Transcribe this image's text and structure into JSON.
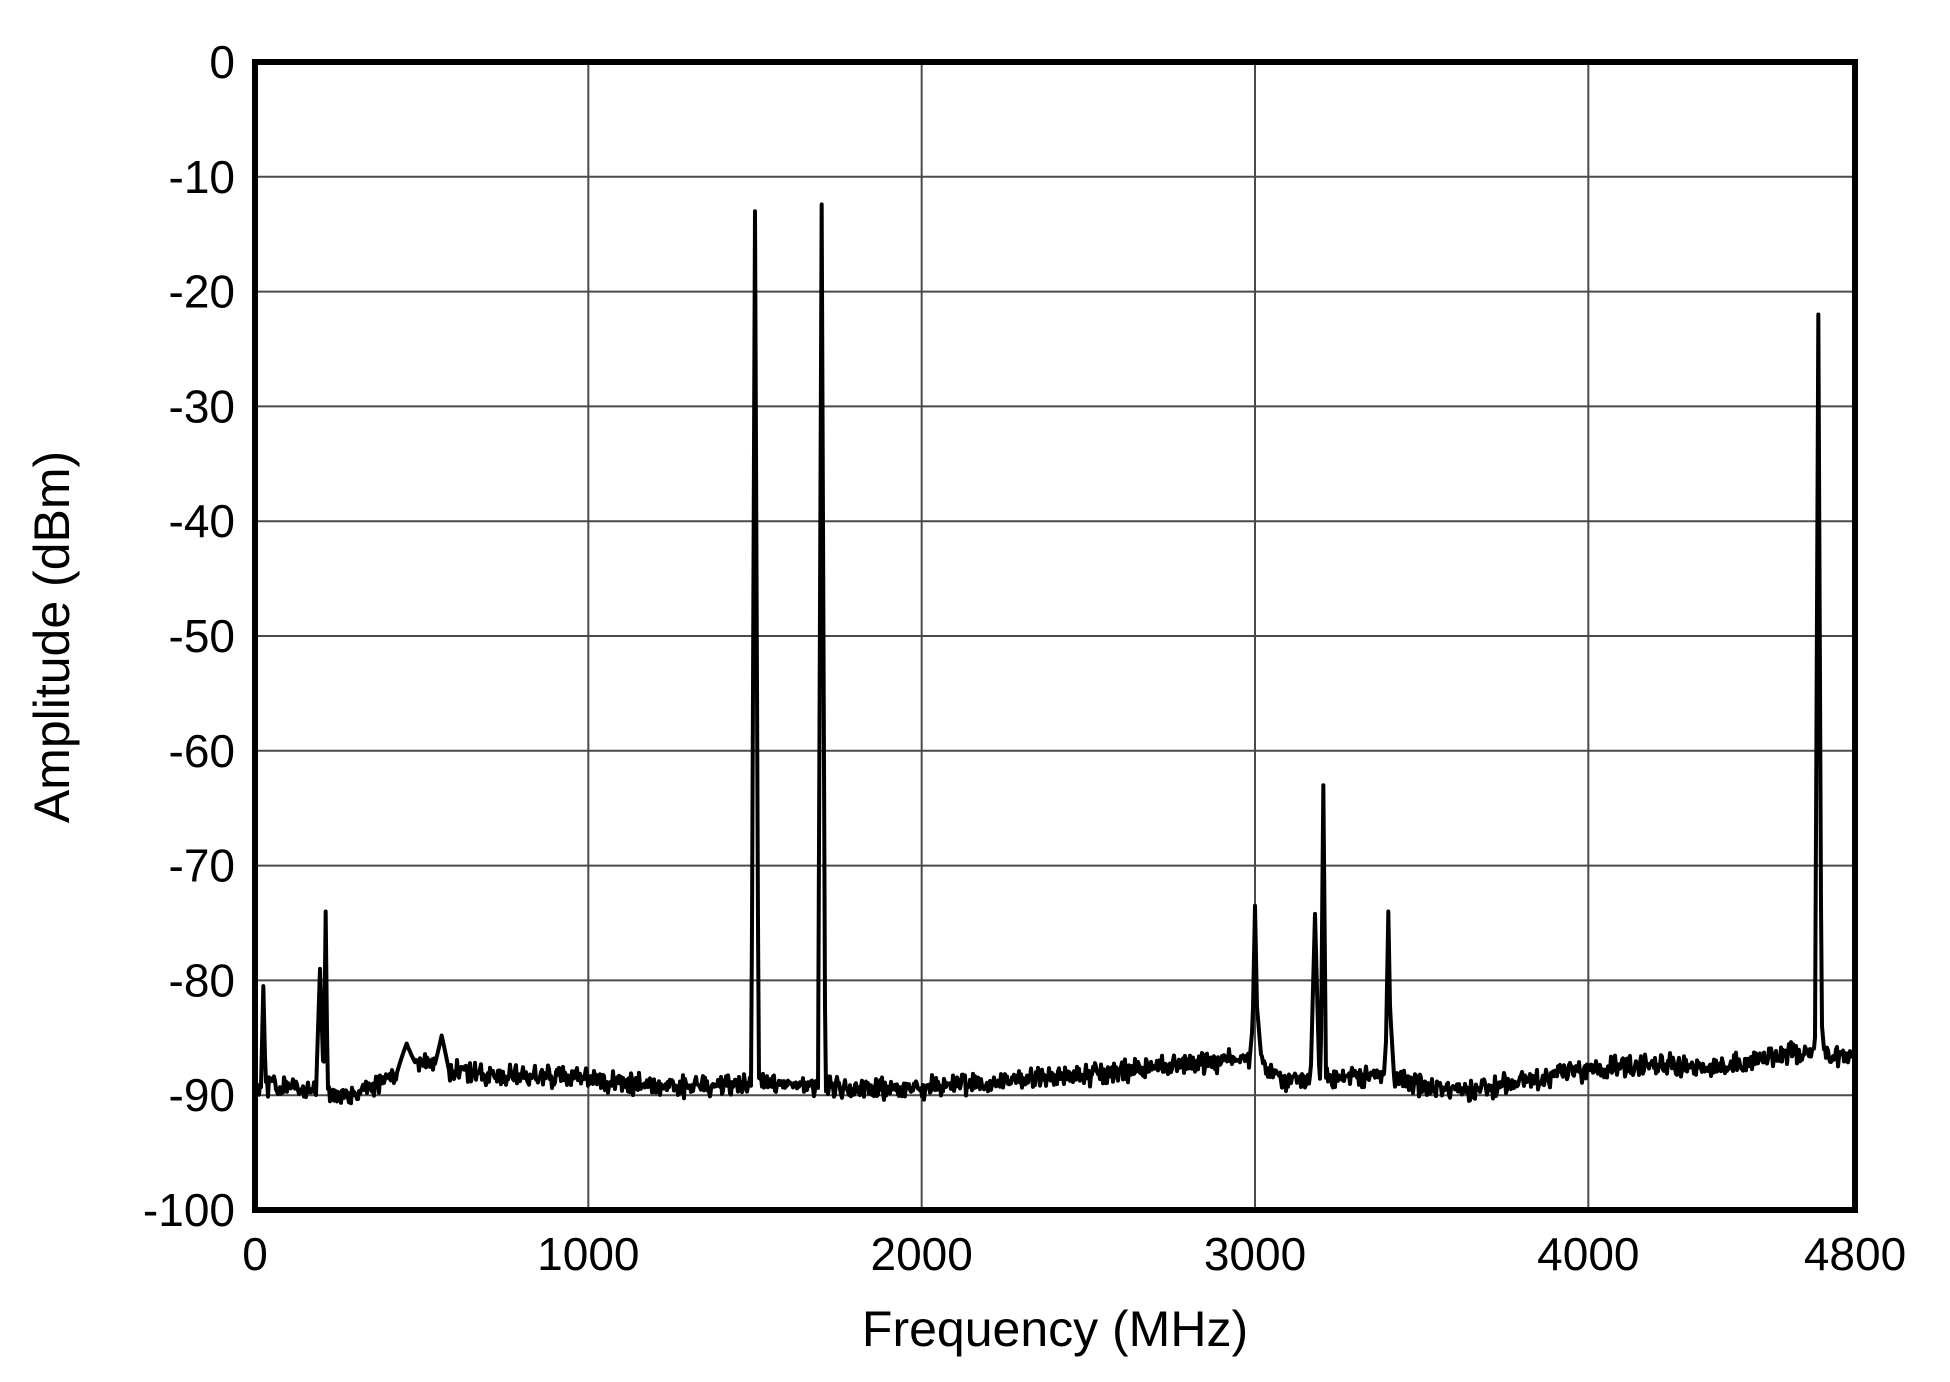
{
  "chart_data": {
    "type": "line",
    "title": "",
    "xlabel": "Frequency (MHz)",
    "ylabel": "Amplitude (dBm)",
    "xlim": [
      0,
      4800
    ],
    "ylim": [
      -100,
      0
    ],
    "x_ticks": [
      0,
      1000,
      2000,
      3000,
      4000,
      4800
    ],
    "x_tick_labels": [
      "0",
      "1000",
      "2000",
      "3000",
      "4000",
      "4800"
    ],
    "y_ticks": [
      0,
      -10,
      -20,
      -30,
      -40,
      -50,
      -60,
      -70,
      -80,
      -90,
      -100
    ],
    "y_tick_labels": [
      "0",
      "-10",
      "-20",
      "-30",
      "-40",
      "-50",
      "-60",
      "-70",
      "-80",
      "-90",
      "-100"
    ],
    "grid": true,
    "grid_color": "#4a4a4a",
    "line_color": "#000000",
    "frame_color": "#000000",
    "noise_floor_dbm": -89,
    "noise_amplitude_db": 1.1,
    "baseline_points": [
      [
        0,
        -89
      ],
      [
        150,
        -89.5
      ],
      [
        300,
        -90
      ],
      [
        420,
        -88.2
      ],
      [
        500,
        -87.2
      ],
      [
        600,
        -88
      ],
      [
        800,
        -88.3
      ],
      [
        1000,
        -88.6
      ],
      [
        1250,
        -89.3
      ],
      [
        1500,
        -89
      ],
      [
        1750,
        -89.3
      ],
      [
        2000,
        -89.4
      ],
      [
        2250,
        -88.8
      ],
      [
        2500,
        -88.2
      ],
      [
        2700,
        -87.6
      ],
      [
        2900,
        -87
      ],
      [
        3000,
        -86.8
      ],
      [
        3080,
        -88.6
      ],
      [
        3300,
        -88.2
      ],
      [
        3500,
        -89.2
      ],
      [
        3650,
        -89.6
      ],
      [
        3800,
        -88.8
      ],
      [
        4000,
        -87.8
      ],
      [
        4200,
        -87.2
      ],
      [
        4350,
        -87.6
      ],
      [
        4500,
        -87
      ],
      [
        4650,
        -86.2
      ],
      [
        4800,
        -86.6
      ]
    ],
    "peaks": [
      {
        "freq": 25,
        "amp": -80.5,
        "half_width": 7
      },
      {
        "freq": 195,
        "amp": -79,
        "half_width": 12
      },
      {
        "freq": 212,
        "amp": -74,
        "half_width": 6
      },
      {
        "freq": 455,
        "amp": -85.5,
        "half_width": 30
      },
      {
        "freq": 560,
        "amp": -84.8,
        "half_width": 22
      },
      {
        "freq": 1500,
        "amp": -13,
        "half_width": 11
      },
      {
        "freq": 1700,
        "amp": -12.4,
        "half_width": 11
      },
      {
        "freq": 3000,
        "amp": -73.5,
        "half_width": 9
      },
      {
        "freq": 3002,
        "amp": -81,
        "half_width": 18
      },
      {
        "freq": 3180,
        "amp": -74.2,
        "half_width": 13
      },
      {
        "freq": 3205,
        "amp": -63,
        "half_width": 8
      },
      {
        "freq": 3400,
        "amp": -74,
        "half_width": 9
      },
      {
        "freq": 3402,
        "amp": -81,
        "half_width": 16
      },
      {
        "freq": 4690,
        "amp": -22,
        "half_width": 10
      },
      {
        "freq": 4692,
        "amp": -81,
        "half_width": 16
      }
    ]
  }
}
